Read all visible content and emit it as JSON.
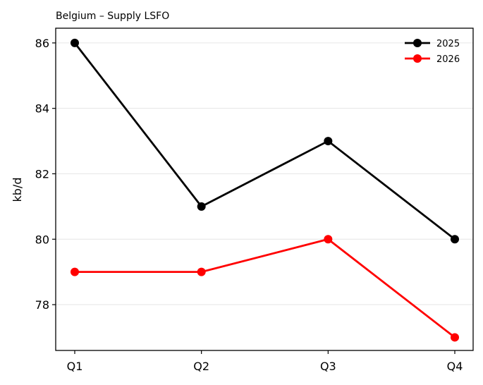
{
  "chart_data": {
    "type": "line",
    "title": "Belgium – Supply LSFO",
    "xlabel": "",
    "ylabel": "kb/d",
    "categories": [
      "Q1",
      "Q2",
      "Q3",
      "Q4"
    ],
    "series": [
      {
        "name": "2025",
        "color": "#000000",
        "values": [
          86,
          81,
          83,
          80
        ]
      },
      {
        "name": "2026",
        "color": "#ff0000",
        "values": [
          79,
          79,
          80,
          77
        ]
      }
    ],
    "ylim": [
      76.6,
      86.45
    ],
    "yticks": [
      78,
      80,
      82,
      84,
      86
    ],
    "grid": "horizontal",
    "legend": "top-right"
  }
}
